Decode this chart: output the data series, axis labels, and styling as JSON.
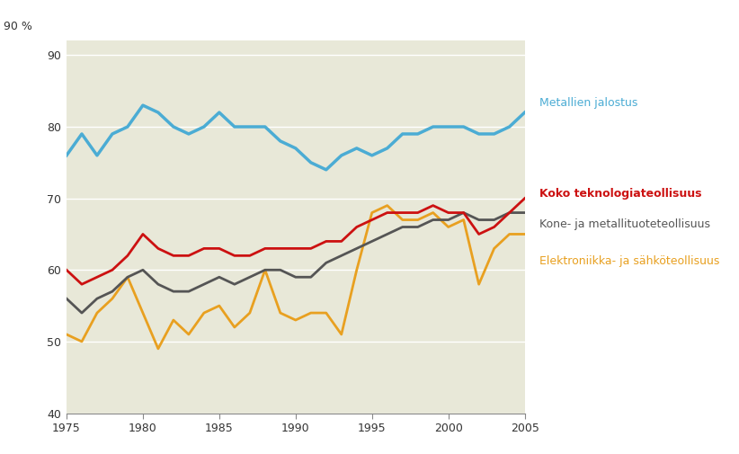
{
  "years": [
    1975,
    1976,
    1977,
    1978,
    1979,
    1980,
    1981,
    1982,
    1983,
    1984,
    1985,
    1986,
    1987,
    1988,
    1989,
    1990,
    1991,
    1992,
    1993,
    1994,
    1995,
    1996,
    1997,
    1998,
    1999,
    2000,
    2001,
    2002,
    2003,
    2004,
    2005
  ],
  "metallien_jalostus": [
    76,
    79,
    76,
    79,
    80,
    83,
    82,
    80,
    79,
    80,
    82,
    80,
    80,
    80,
    78,
    77,
    75,
    74,
    76,
    77,
    76,
    77,
    79,
    79,
    80,
    80,
    80,
    79,
    79,
    80,
    82
  ],
  "koko_teknologia": [
    60,
    58,
    59,
    60,
    62,
    65,
    63,
    62,
    62,
    63,
    63,
    62,
    62,
    63,
    63,
    63,
    63,
    64,
    64,
    66,
    67,
    68,
    68,
    68,
    69,
    68,
    68,
    65,
    66,
    68,
    70
  ],
  "kone_metalli": [
    56,
    54,
    56,
    57,
    59,
    60,
    58,
    57,
    57,
    58,
    59,
    58,
    59,
    60,
    60,
    59,
    59,
    61,
    62,
    63,
    64,
    65,
    66,
    66,
    67,
    67,
    68,
    67,
    67,
    68,
    68
  ],
  "elektroniikka": [
    51,
    50,
    54,
    56,
    59,
    54,
    49,
    53,
    51,
    54,
    55,
    52,
    54,
    60,
    54,
    53,
    54,
    54,
    51,
    60,
    68,
    69,
    67,
    67,
    68,
    66,
    67,
    58,
    63,
    65,
    65
  ],
  "bg_color": "#e8e8d8",
  "fig_bg_color": "#ffffff",
  "line_color_blue": "#4bacd4",
  "line_color_red": "#cc1111",
  "line_color_gray": "#555555",
  "line_color_orange": "#e8a020",
  "label_metallien": "Metallien jalostus",
  "label_koko": "Koko teknologiateollisuus",
  "label_kone": "Kone- ja metallituoteteollisuus",
  "label_elektroniikka": "Elektroniikka- ja sähköteollisuus",
  "ylim": [
    40,
    92
  ],
  "yticks": [
    40,
    50,
    60,
    70,
    80,
    90
  ],
  "xlim": [
    1975,
    2005
  ],
  "xticks": [
    1975,
    1980,
    1985,
    1990,
    1995,
    2000,
    2005
  ],
  "lw_main": 2.0,
  "lw_blue": 2.5
}
